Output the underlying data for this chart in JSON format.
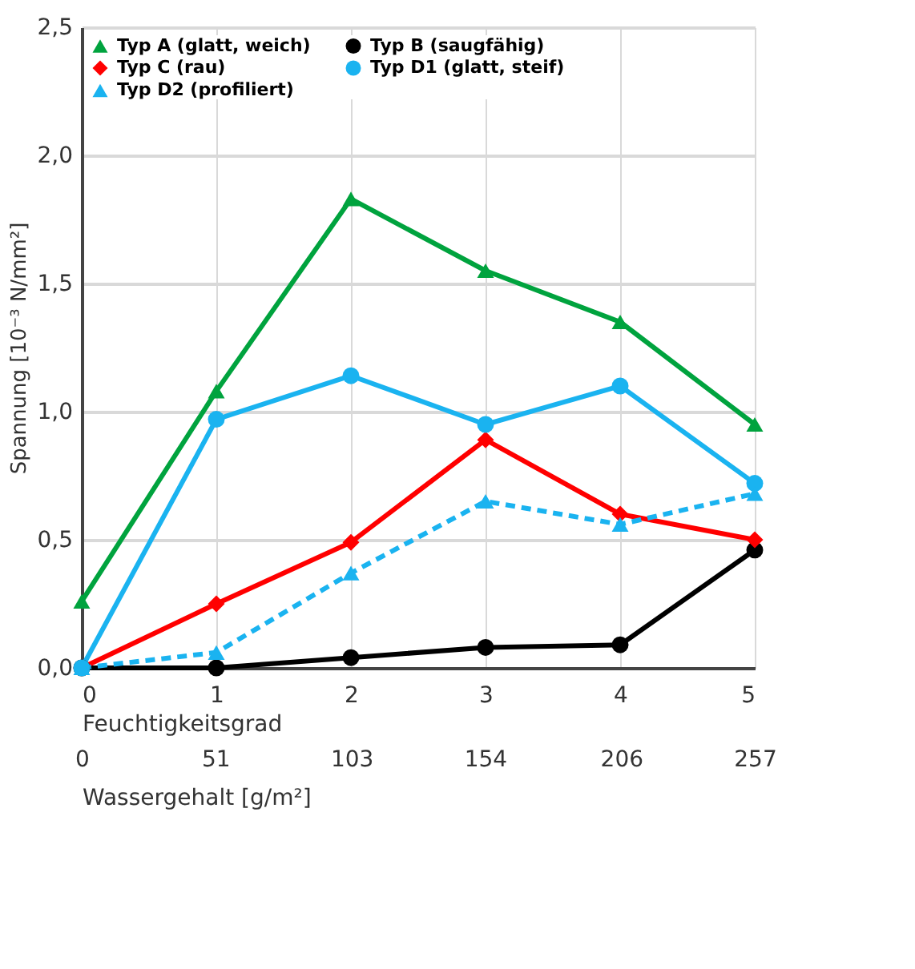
{
  "chart_data": {
    "type": "line",
    "x": [
      0,
      1,
      2,
      3,
      4,
      5
    ],
    "xlabel": "Feuchtigkeitsgrad",
    "ylabel": "Spannung [10⁻³ N/mm²]",
    "x2label": "Wassergehalt [g/m²]",
    "xlim": [
      0,
      5
    ],
    "xticks": [
      0,
      1,
      2,
      3,
      4,
      5
    ],
    "x2lim": [
      0,
      257
    ],
    "x2ticks": [
      0,
      51,
      103,
      154,
      206,
      257
    ],
    "ylim": [
      0,
      2.5
    ],
    "yticks": [
      {
        "value": 0,
        "label": "0,0"
      },
      {
        "value": 0.5,
        "label": "0,5"
      },
      {
        "value": 1.0,
        "label": "1,0"
      },
      {
        "value": 1.5,
        "label": "1,5"
      },
      {
        "value": 2.0,
        "label": "2,0"
      },
      {
        "value": 2.5,
        "label": "2,5"
      }
    ],
    "grid": true,
    "legend": "top",
    "series": [
      {
        "name": "Typ A (glatt, weich)",
        "color": "#00a33e",
        "marker": "triangle",
        "line_style": "solid",
        "values": [
          0.26,
          1.08,
          1.83,
          1.55,
          1.35,
          0.95
        ]
      },
      {
        "name": "Typ B (saugfähig)",
        "color": "#000000",
        "marker": "circle",
        "line_style": "solid",
        "values": [
          0.0,
          0.0,
          0.04,
          0.08,
          0.09,
          0.46
        ]
      },
      {
        "name": "Typ C (rau)",
        "color": "#ff0000",
        "marker": "diamond",
        "line_style": "solid",
        "values": [
          0.0,
          0.25,
          0.49,
          0.89,
          0.6,
          0.5
        ]
      },
      {
        "name": "Typ D1 (glatt, steif)",
        "color": "#1ab3f0",
        "marker": "circle",
        "line_style": "solid",
        "values": [
          0.0,
          0.97,
          1.14,
          0.95,
          1.1,
          0.72
        ]
      },
      {
        "name": "Typ D2 (profiliert)",
        "color": "#1ab3f0",
        "marker": "triangle",
        "line_style": "dashed",
        "values": [
          0.0,
          0.06,
          0.37,
          0.65,
          0.56,
          0.68
        ]
      }
    ]
  }
}
